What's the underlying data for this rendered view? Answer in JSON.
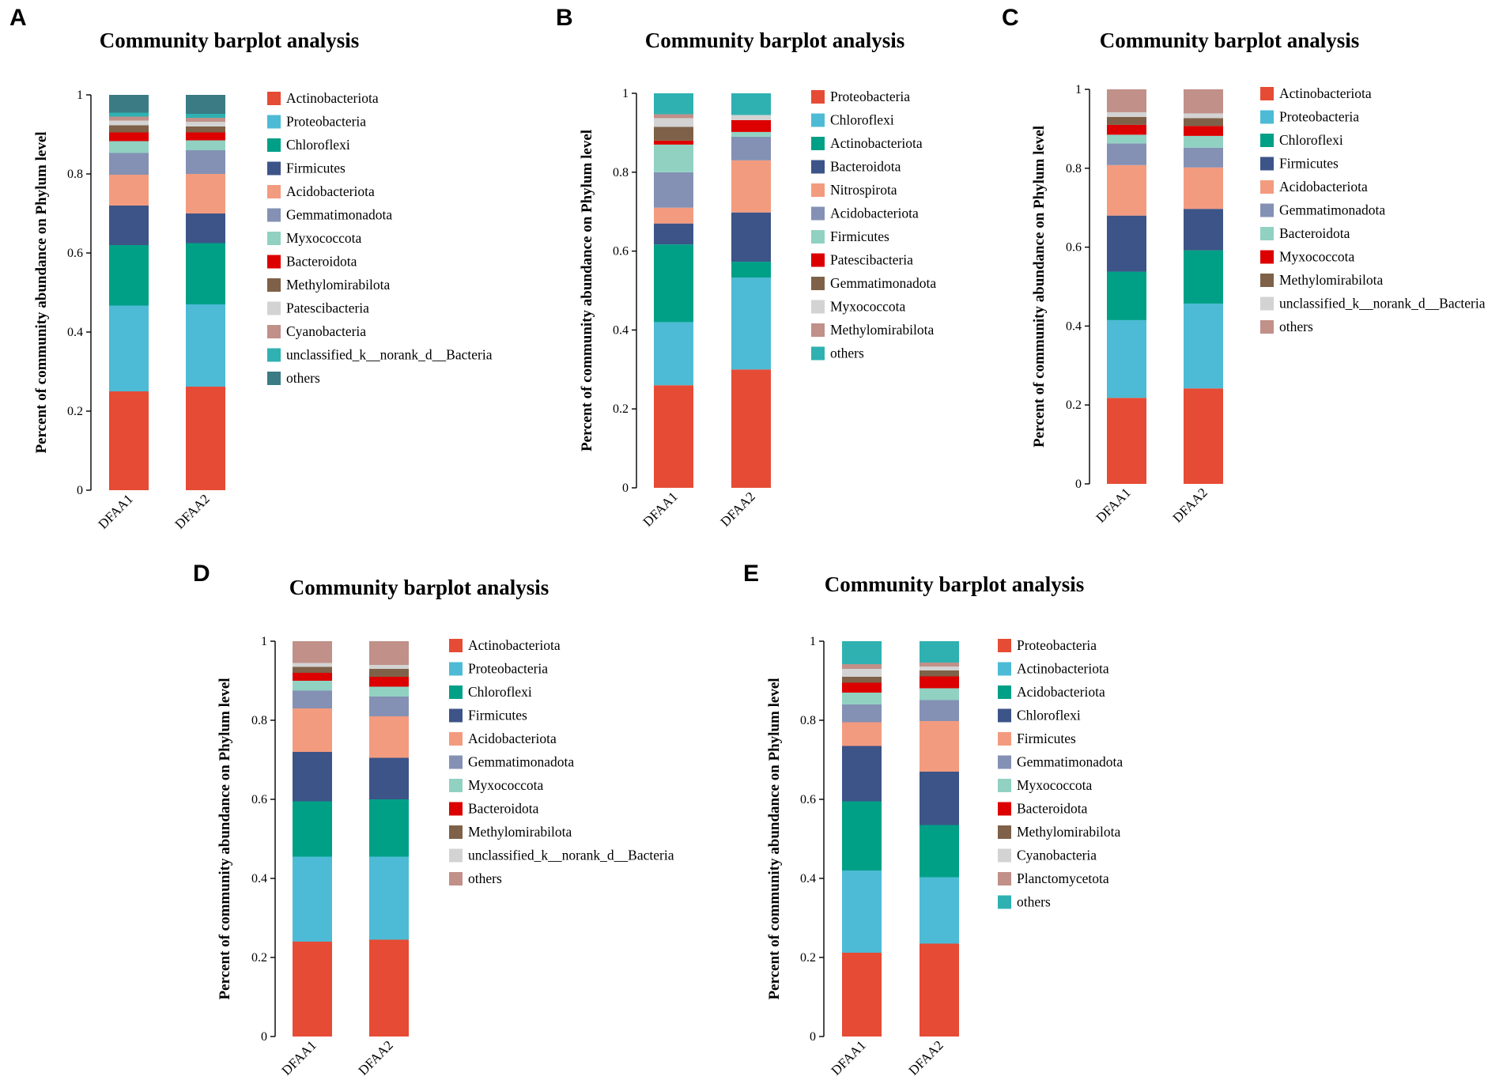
{
  "figure": {
    "colors": {
      "red": "#E64B35",
      "sky": "#4DBBD5",
      "teal": "#00A087",
      "navy": "#3C5488",
      "salmon": "#F39B7F",
      "slate": "#8491B4",
      "mint": "#91D1C2",
      "crimson": "#DC0000",
      "brown": "#7E6148",
      "lightgray": "#D3D3D3",
      "rose": "#C09089",
      "cyan": "#2FB1B1",
      "darkteal": "#3A7B84"
    }
  },
  "chart_data": [
    {
      "id": "A",
      "panel_label": "A",
      "type": "bar",
      "stacked": true,
      "title": "Community barplot analysis",
      "xlabel": "",
      "ylabel": "Percent of community abundance on Phylum level",
      "ylim": [
        0,
        1
      ],
      "yticks": [
        "0",
        "0.2",
        "0.4",
        "0.6",
        "0.8",
        "1"
      ],
      "categories": [
        "DFAA1",
        "DFAA2"
      ],
      "legend_position": "right",
      "series": [
        {
          "name": "Actinobacteriota",
          "color": "#E64B35",
          "values": [
            0.25,
            0.262
          ]
        },
        {
          "name": "Proteobacteria",
          "color": "#4DBBD5",
          "values": [
            0.217,
            0.208
          ]
        },
        {
          "name": "Chloroflexi",
          "color": "#00A087",
          "values": [
            0.153,
            0.155
          ]
        },
        {
          "name": "Firmicutes",
          "color": "#3C5488",
          "values": [
            0.1,
            0.075
          ]
        },
        {
          "name": "Acidobacteriota",
          "color": "#F39B7F",
          "values": [
            0.078,
            0.1
          ]
        },
        {
          "name": "Gemmatimonadota",
          "color": "#8491B4",
          "values": [
            0.055,
            0.06
          ]
        },
        {
          "name": "Myxococcota",
          "color": "#91D1C2",
          "values": [
            0.03,
            0.025
          ]
        },
        {
          "name": "Bacteroidota",
          "color": "#DC0000",
          "values": [
            0.022,
            0.02
          ]
        },
        {
          "name": "Methylomirabilota",
          "color": "#7E6148",
          "values": [
            0.018,
            0.015
          ]
        },
        {
          "name": "Patescibacteria",
          "color": "#D3D3D3",
          "values": [
            0.012,
            0.012
          ]
        },
        {
          "name": "Cyanobacteria",
          "color": "#C09089",
          "values": [
            0.01,
            0.01
          ]
        },
        {
          "name": "unclassified_k__norank_d__Bacteria",
          "color": "#2FB1B1",
          "values": [
            0.01,
            0.01
          ]
        },
        {
          "name": "others",
          "color": "#3A7B84",
          "values": [
            0.045,
            0.048
          ]
        }
      ]
    },
    {
      "id": "B",
      "panel_label": "B",
      "type": "bar",
      "stacked": true,
      "title": "Community barplot analysis",
      "xlabel": "",
      "ylabel": "Percent of community abundance on Phylum level",
      "ylim": [
        0,
        1
      ],
      "yticks": [
        "0",
        "0.2",
        "0.4",
        "0.6",
        "0.8",
        "1"
      ],
      "categories": [
        "DFAA1",
        "DFAA2"
      ],
      "legend_position": "right",
      "series": [
        {
          "name": "Proteobacteria",
          "color": "#E64B35",
          "values": [
            0.26,
            0.3
          ]
        },
        {
          "name": "Chloroflexi",
          "color": "#4DBBD5",
          "values": [
            0.16,
            0.233
          ]
        },
        {
          "name": "Actinobacteriota",
          "color": "#00A087",
          "values": [
            0.197,
            0.04
          ]
        },
        {
          "name": "Bacteroidota",
          "color": "#3C5488",
          "values": [
            0.053,
            0.125
          ]
        },
        {
          "name": "Nitrospirota",
          "color": "#F39B7F",
          "values": [
            0.04,
            0.132
          ]
        },
        {
          "name": "Acidobacteriota",
          "color": "#8491B4",
          "values": [
            0.09,
            0.06
          ]
        },
        {
          "name": "Firmicutes",
          "color": "#91D1C2",
          "values": [
            0.07,
            0.012
          ]
        },
        {
          "name": "Patescibacteria",
          "color": "#DC0000",
          "values": [
            0.01,
            0.03
          ]
        },
        {
          "name": "Gemmatimonadota",
          "color": "#7E6148",
          "values": [
            0.035,
            0.0
          ]
        },
        {
          "name": "Myxococcota",
          "color": "#D3D3D3",
          "values": [
            0.022,
            0.013
          ]
        },
        {
          "name": "Methylomirabilota",
          "color": "#C09089",
          "values": [
            0.01,
            0.0
          ]
        },
        {
          "name": "others",
          "color": "#2FB1B1",
          "values": [
            0.053,
            0.055
          ]
        }
      ]
    },
    {
      "id": "C",
      "panel_label": "C",
      "type": "bar",
      "stacked": true,
      "title": "Community barplot analysis",
      "xlabel": "",
      "ylabel": "Percent of community abundance on Phylum level",
      "ylim": [
        0,
        1
      ],
      "yticks": [
        "0",
        "0.2",
        "0.4",
        "0.6",
        "0.8",
        "1"
      ],
      "categories": [
        "DFAA1",
        "DFAA2"
      ],
      "legend_position": "right",
      "series": [
        {
          "name": "Actinobacteriota",
          "color": "#E64B35",
          "values": [
            0.218,
            0.242
          ]
        },
        {
          "name": "Proteobacteria",
          "color": "#4DBBD5",
          "values": [
            0.197,
            0.215
          ]
        },
        {
          "name": "Chloroflexi",
          "color": "#00A087",
          "values": [
            0.123,
            0.135
          ]
        },
        {
          "name": "Firmicutes",
          "color": "#3C5488",
          "values": [
            0.142,
            0.105
          ]
        },
        {
          "name": "Acidobacteriota",
          "color": "#F39B7F",
          "values": [
            0.128,
            0.105
          ]
        },
        {
          "name": "Gemmatimonadota",
          "color": "#8491B4",
          "values": [
            0.055,
            0.05
          ]
        },
        {
          "name": "Bacteroidota",
          "color": "#91D1C2",
          "values": [
            0.022,
            0.03
          ]
        },
        {
          "name": "Myxococcota",
          "color": "#DC0000",
          "values": [
            0.025,
            0.025
          ]
        },
        {
          "name": "Methylomirabilota",
          "color": "#7E6148",
          "values": [
            0.02,
            0.02
          ]
        },
        {
          "name": "unclassified_k__norank_d__Bacteria",
          "color": "#D3D3D3",
          "values": [
            0.012,
            0.012
          ]
        },
        {
          "name": "others",
          "color": "#C09089",
          "values": [
            0.058,
            0.061
          ]
        }
      ]
    },
    {
      "id": "D",
      "panel_label": "D",
      "type": "bar",
      "stacked": true,
      "title": "Community barplot analysis",
      "xlabel": "",
      "ylabel": "Percent of community abundance on Phylum level",
      "ylim": [
        0,
        1
      ],
      "yticks": [
        "0",
        "0.2",
        "0.4",
        "0.6",
        "0.8",
        "1"
      ],
      "categories": [
        "DFAA1",
        "DFAA2"
      ],
      "legend_position": "right",
      "series": [
        {
          "name": "Actinobacteriota",
          "color": "#E64B35",
          "values": [
            0.24,
            0.245
          ]
        },
        {
          "name": "Proteobacteria",
          "color": "#4DBBD5",
          "values": [
            0.215,
            0.21
          ]
        },
        {
          "name": "Chloroflexi",
          "color": "#00A087",
          "values": [
            0.14,
            0.145
          ]
        },
        {
          "name": "Firmicutes",
          "color": "#3C5488",
          "values": [
            0.125,
            0.105
          ]
        },
        {
          "name": "Acidobacteriota",
          "color": "#F39B7F",
          "values": [
            0.11,
            0.105
          ]
        },
        {
          "name": "Gemmatimonadota",
          "color": "#8491B4",
          "values": [
            0.045,
            0.05
          ]
        },
        {
          "name": "Myxococcota",
          "color": "#91D1C2",
          "values": [
            0.025,
            0.025
          ]
        },
        {
          "name": "Bacteroidota",
          "color": "#DC0000",
          "values": [
            0.02,
            0.025
          ]
        },
        {
          "name": "Methylomirabilota",
          "color": "#7E6148",
          "values": [
            0.015,
            0.02
          ]
        },
        {
          "name": "unclassified_k__norank_d__Bacteria",
          "color": "#D3D3D3",
          "values": [
            0.01,
            0.01
          ]
        },
        {
          "name": "others",
          "color": "#C09089",
          "values": [
            0.055,
            0.06
          ]
        }
      ]
    },
    {
      "id": "E",
      "panel_label": "E",
      "type": "bar",
      "stacked": true,
      "title": "Community barplot analysis",
      "xlabel": "",
      "ylabel": "Percent of community abundance on Phylum level",
      "ylim": [
        0,
        1
      ],
      "yticks": [
        "0",
        "0.2",
        "0.4",
        "0.6",
        "0.8",
        "1"
      ],
      "categories": [
        "DFAA1",
        "DFAA2"
      ],
      "legend_position": "right",
      "series": [
        {
          "name": "Proteobacteria",
          "color": "#E64B35",
          "values": [
            0.212,
            0.235
          ]
        },
        {
          "name": "Actinobacteriota",
          "color": "#4DBBD5",
          "values": [
            0.208,
            0.168
          ]
        },
        {
          "name": "Acidobacteriota",
          "color": "#00A087",
          "values": [
            0.175,
            0.132
          ]
        },
        {
          "name": "Chloroflexi",
          "color": "#3C5488",
          "values": [
            0.14,
            0.135
          ]
        },
        {
          "name": "Firmicutes",
          "color": "#F39B7F",
          "values": [
            0.06,
            0.128
          ]
        },
        {
          "name": "Gemmatimonadota",
          "color": "#8491B4",
          "values": [
            0.045,
            0.053
          ]
        },
        {
          "name": "Myxococcota",
          "color": "#91D1C2",
          "values": [
            0.03,
            0.03
          ]
        },
        {
          "name": "Bacteroidota",
          "color": "#DC0000",
          "values": [
            0.025,
            0.03
          ]
        },
        {
          "name": "Methylomirabilota",
          "color": "#7E6148",
          "values": [
            0.015,
            0.015
          ]
        },
        {
          "name": "Cyanobacteria",
          "color": "#D3D3D3",
          "values": [
            0.02,
            0.01
          ]
        },
        {
          "name": "Planctomycetota",
          "color": "#C09089",
          "values": [
            0.012,
            0.01
          ]
        },
        {
          "name": "others",
          "color": "#2FB1B1",
          "values": [
            0.058,
            0.054
          ]
        }
      ]
    }
  ]
}
